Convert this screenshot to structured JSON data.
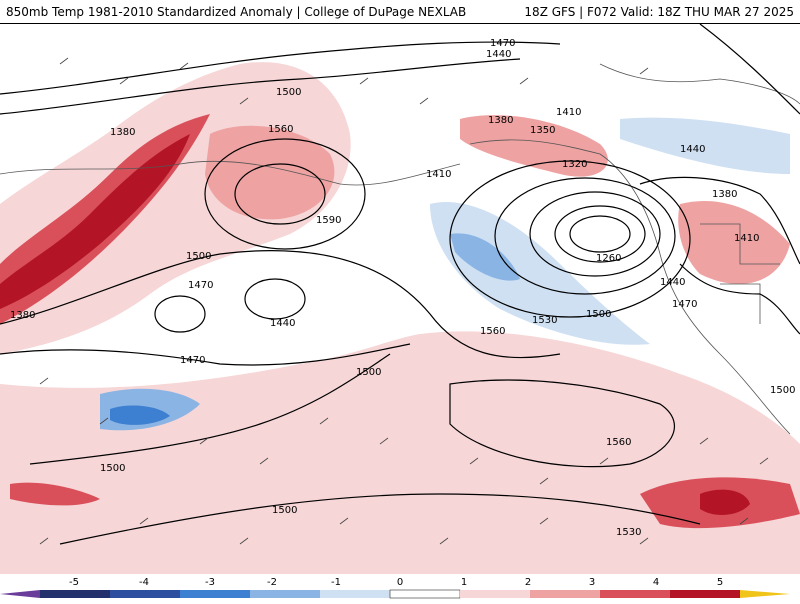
{
  "title": {
    "left": "850mb Temp 1981-2010 Standardized Anomaly | College of DuPage NEXLAB",
    "right": "18Z GFS | F072 Valid: 18Z THU MAR 27 2025"
  },
  "contour_labels": [
    "1470",
    "1440",
    "1500",
    "1380",
    "1560",
    "1410",
    "1380",
    "1350",
    "1320",
    "1410",
    "1440",
    "1380",
    "1590",
    "1500",
    "1260",
    "1410",
    "1470",
    "1440",
    "1470",
    "1440",
    "1530",
    "1500",
    "1560",
    "1470",
    "1500",
    "1500",
    "1560",
    "1500",
    "1500",
    "1530",
    "1380"
  ],
  "colorbar": {
    "ticks": [
      "-5",
      "-4",
      "-3",
      "-2",
      "-1",
      "0",
      "1",
      "2",
      "3",
      "4",
      "5"
    ],
    "colors": {
      "min_arrow": "#6a3d9a",
      "n5": "#22306b",
      "n4": "#2e4fa0",
      "n3": "#3d7fd0",
      "n2": "#8ab4e4",
      "n1": "#cfe0f3",
      "zero": "#ffffff",
      "p1": "#f6d6d6",
      "p2": "#eea2a2",
      "p3": "#d9505a",
      "p4": "#b31526",
      "p5": "#7a0a14",
      "max_arrow": "#f0c419"
    }
  }
}
